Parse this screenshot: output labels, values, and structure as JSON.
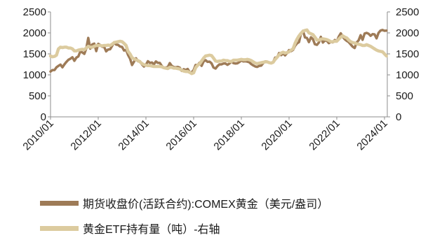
{
  "chart_data": {
    "type": "line",
    "x_ticks": [
      "2010/01",
      "2012/01",
      "2014/01",
      "2016/01",
      "2018/01",
      "2020/01",
      "2022/01",
      "2024/01"
    ],
    "y_ticks": [
      0,
      500,
      1000,
      1500,
      2000,
      2500
    ],
    "y2_ticks": [
      0,
      500,
      1000,
      1500,
      2000,
      2500
    ],
    "ylim": [
      0,
      2500
    ],
    "y2lim": [
      0,
      2500
    ],
    "grid": false,
    "legend_position": "bottom-left",
    "x": [
      "2010/01",
      "2010/02",
      "2010/03",
      "2010/04",
      "2010/05",
      "2010/06",
      "2010/07",
      "2010/08",
      "2010/09",
      "2010/10",
      "2010/11",
      "2010/12",
      "2011/01",
      "2011/02",
      "2011/03",
      "2011/04",
      "2011/05",
      "2011/06",
      "2011/07",
      "2011/08",
      "2011/09",
      "2011/10",
      "2011/11",
      "2011/12",
      "2012/01",
      "2012/02",
      "2012/03",
      "2012/04",
      "2012/05",
      "2012/06",
      "2012/07",
      "2012/08",
      "2012/09",
      "2012/10",
      "2012/11",
      "2012/12",
      "2013/01",
      "2013/02",
      "2013/03",
      "2013/04",
      "2013/05",
      "2013/06",
      "2013/07",
      "2013/08",
      "2013/09",
      "2013/10",
      "2013/11",
      "2013/12",
      "2014/01",
      "2014/02",
      "2014/03",
      "2014/04",
      "2014/05",
      "2014/06",
      "2014/07",
      "2014/08",
      "2014/09",
      "2014/10",
      "2014/11",
      "2014/12",
      "2015/01",
      "2015/02",
      "2015/03",
      "2015/04",
      "2015/05",
      "2015/06",
      "2015/07",
      "2015/08",
      "2015/09",
      "2015/10",
      "2015/11",
      "2015/12",
      "2016/01",
      "2016/02",
      "2016/03",
      "2016/04",
      "2016/05",
      "2016/06",
      "2016/07",
      "2016/08",
      "2016/09",
      "2016/10",
      "2016/11",
      "2016/12",
      "2017/01",
      "2017/02",
      "2017/03",
      "2017/04",
      "2017/05",
      "2017/06",
      "2017/07",
      "2017/08",
      "2017/09",
      "2017/10",
      "2017/11",
      "2017/12",
      "2018/01",
      "2018/02",
      "2018/03",
      "2018/04",
      "2018/05",
      "2018/06",
      "2018/07",
      "2018/08",
      "2018/09",
      "2018/10",
      "2018/11",
      "2018/12",
      "2019/01",
      "2019/02",
      "2019/03",
      "2019/04",
      "2019/05",
      "2019/06",
      "2019/07",
      "2019/08",
      "2019/09",
      "2019/10",
      "2019/11",
      "2019/12",
      "2020/01",
      "2020/02",
      "2020/03",
      "2020/04",
      "2020/05",
      "2020/06",
      "2020/07",
      "2020/08",
      "2020/09",
      "2020/10",
      "2020/11",
      "2020/12",
      "2021/01",
      "2021/02",
      "2021/03",
      "2021/04",
      "2021/05",
      "2021/06",
      "2021/07",
      "2021/08",
      "2021/09",
      "2021/10",
      "2021/11",
      "2021/12",
      "2022/01",
      "2022/02",
      "2022/03",
      "2022/04",
      "2022/05",
      "2022/06",
      "2022/07",
      "2022/08",
      "2022/09",
      "2022/10",
      "2022/11",
      "2022/12",
      "2023/01",
      "2023/02",
      "2023/03",
      "2023/04",
      "2023/05",
      "2023/06",
      "2023/07",
      "2023/08",
      "2023/09",
      "2023/10",
      "2023/11",
      "2023/12",
      "2024/01",
      "2024/02"
    ],
    "series": [
      {
        "name": "期货收盘价(活跃合约):COMEX黄金（美元/盎司）",
        "axis": "left",
        "color": "#9e7b57",
        "values": [
          1080,
          1115,
          1115,
          1180,
          1215,
          1245,
          1180,
          1250,
          1310,
          1360,
          1385,
          1420,
          1335,
          1410,
          1440,
          1560,
          1535,
          1500,
          1630,
          1880,
          1625,
          1725,
          1745,
          1565,
          1740,
          1710,
          1670,
          1665,
          1560,
          1605,
          1610,
          1690,
          1775,
          1720,
          1715,
          1675,
          1665,
          1580,
          1595,
          1475,
          1390,
          1235,
          1315,
          1395,
          1325,
          1325,
          1250,
          1200,
          1240,
          1325,
          1285,
          1295,
          1250,
          1320,
          1285,
          1285,
          1210,
          1170,
          1175,
          1185,
          1280,
          1215,
          1185,
          1180,
          1190,
          1170,
          1095,
          1135,
          1115,
          1140,
          1065,
          1060,
          1115,
          1235,
          1235,
          1290,
          1215,
          1320,
          1350,
          1310,
          1315,
          1275,
          1175,
          1150,
          1210,
          1250,
          1250,
          1270,
          1270,
          1240,
          1270,
          1320,
          1280,
          1270,
          1275,
          1305,
          1345,
          1320,
          1325,
          1315,
          1300,
          1255,
          1225,
          1200,
          1190,
          1215,
          1220,
          1280,
          1320,
          1315,
          1290,
          1285,
          1305,
          1410,
          1415,
          1520,
          1470,
          1510,
          1465,
          1520,
          1590,
          1565,
          1595,
          1690,
          1750,
          1780,
          1985,
          2050,
          1890,
          1880,
          1780,
          1895,
          1850,
          1730,
          1715,
          1770,
          1905,
          1770,
          1815,
          1815,
          1755,
          1785,
          1775,
          1830,
          1795,
          1910,
          1990,
          1910,
          1850,
          1810,
          1780,
          1725,
          1670,
          1640,
          1770,
          1825,
          1945,
          1835,
          1985,
          2000,
          1980,
          1930,
          1970,
          1965,
          1870,
          2000,
          2055,
          2070,
          2050,
          2055
        ]
      },
      {
        "name": "黄金ETF持有量（吨）-右轴",
        "axis": "right",
        "color": "#dccb9f",
        "values": [
          1450,
          1430,
          1440,
          1470,
          1620,
          1660,
          1650,
          1660,
          1660,
          1640,
          1640,
          1620,
          1570,
          1570,
          1590,
          1600,
          1610,
          1600,
          1640,
          1680,
          1660,
          1660,
          1680,
          1700,
          1700,
          1700,
          1690,
          1700,
          1700,
          1710,
          1700,
          1730,
          1770,
          1780,
          1790,
          1800,
          1790,
          1750,
          1700,
          1560,
          1500,
          1410,
          1380,
          1360,
          1340,
          1310,
          1270,
          1240,
          1230,
          1220,
          1220,
          1210,
          1200,
          1200,
          1200,
          1200,
          1190,
          1170,
          1160,
          1150,
          1180,
          1180,
          1160,
          1160,
          1150,
          1140,
          1110,
          1090,
          1080,
          1080,
          1060,
          1030,
          1050,
          1170,
          1230,
          1260,
          1330,
          1400,
          1450,
          1460,
          1470,
          1460,
          1400,
          1330,
          1320,
          1330,
          1330,
          1350,
          1340,
          1340,
          1320,
          1320,
          1350,
          1350,
          1350,
          1360,
          1370,
          1360,
          1360,
          1370,
          1360,
          1340,
          1310,
          1280,
          1270,
          1280,
          1290,
          1300,
          1310,
          1310,
          1290,
          1280,
          1300,
          1370,
          1420,
          1480,
          1520,
          1540,
          1520,
          1530,
          1550,
          1590,
          1620,
          1750,
          1850,
          1930,
          1990,
          2040,
          2060,
          2070,
          2000,
          1980,
          1960,
          1900,
          1830,
          1830,
          1850,
          1860,
          1850,
          1840,
          1820,
          1790,
          1790,
          1800,
          1800,
          1850,
          1900,
          1930,
          1900,
          1880,
          1830,
          1790,
          1770,
          1760,
          1740,
          1730,
          1720,
          1700,
          1700,
          1720,
          1700,
          1680,
          1650,
          1620,
          1590,
          1570,
          1560,
          1550,
          1500,
          1450
        ]
      }
    ]
  }
}
